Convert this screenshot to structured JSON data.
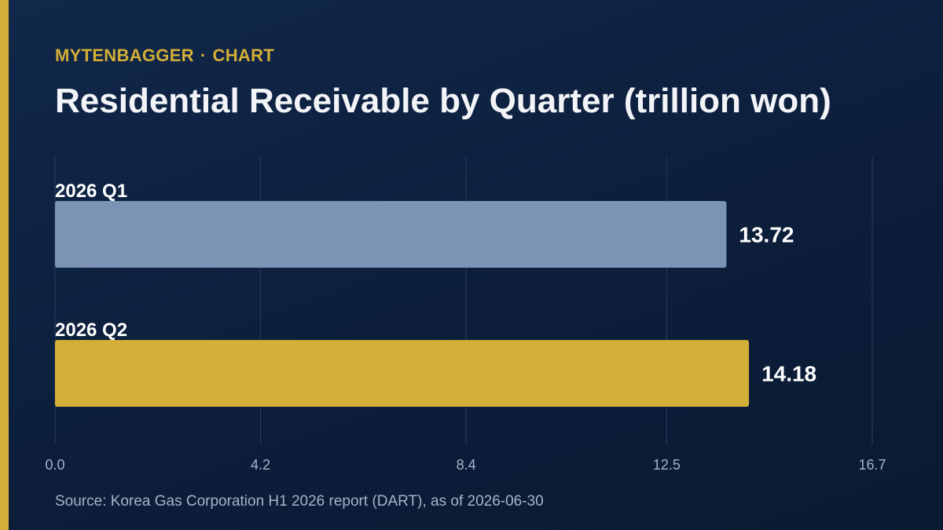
{
  "brand": {
    "name": "MYTENBAGGER",
    "separator": "·",
    "section": "CHART"
  },
  "colors": {
    "background": "#0c1e3b",
    "accent": "#d4af37",
    "bar_q1": "#7b93b5",
    "bar_q2": "#d4af37",
    "grid": "#2a3c5a"
  },
  "chart_data": {
    "type": "bar",
    "orientation": "horizontal",
    "title": "Residential Receivable by Quarter (trillion won)",
    "categories": [
      "2026 Q1",
      "2026 Q2"
    ],
    "values": [
      13.72,
      14.18
    ],
    "value_labels": [
      "13.72",
      "14.18"
    ],
    "xlim": [
      0,
      16.7
    ],
    "x_ticks": [
      0,
      4.2,
      8.4,
      12.5,
      16.7
    ],
    "x_tick_labels": [
      "0.0",
      "4.2",
      "8.4",
      "12.5",
      "16.7"
    ],
    "xlabel": "",
    "ylabel": "",
    "grid": true,
    "legend": "none"
  },
  "source": "Source: Korea Gas Corporation H1 2026 report (DART), as of 2026-06-30"
}
